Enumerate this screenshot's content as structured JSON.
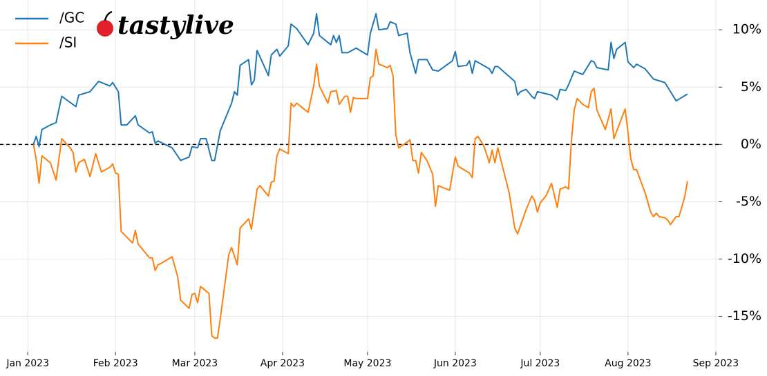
{
  "chart_data": {
    "type": "line",
    "logo": "tastylive",
    "xlim": [
      -9.8,
      244
    ],
    "ylim": [
      -18.1,
      12.6
    ],
    "xticks": [
      {
        "value": 0,
        "label": "Jan 2023"
      },
      {
        "value": 31,
        "label": "Feb 2023"
      },
      {
        "value": 59,
        "label": "Mar 2023"
      },
      {
        "value": 90,
        "label": "Apr 2023"
      },
      {
        "value": 120,
        "label": "May 2023"
      },
      {
        "value": 151,
        "label": "Jun 2023"
      },
      {
        "value": 181,
        "label": "Jul 2023"
      },
      {
        "value": 212,
        "label": "Aug 2023"
      },
      {
        "value": 243,
        "label": "Sep 2023"
      }
    ],
    "yticks": [
      {
        "value": -15,
        "label": "-15%"
      },
      {
        "value": -10,
        "label": "-10%"
      },
      {
        "value": -5,
        "label": "-5%"
      },
      {
        "value": 0,
        "label": "0%"
      },
      {
        "value": 5,
        "label": "5%"
      },
      {
        "value": 10,
        "label": "10%"
      }
    ],
    "grid": true,
    "reference_line": 0,
    "legend": "upper-left",
    "series": [
      {
        "name": "/GC",
        "color": "#1f77b4",
        "x": [
          2,
          3,
          4,
          5,
          8,
          10,
          12,
          17,
          18,
          22,
          25,
          29,
          30,
          32,
          33,
          35,
          38,
          39,
          43,
          44,
          45,
          46,
          51,
          54,
          57,
          58,
          60,
          61,
          63,
          65,
          66,
          68,
          72,
          73,
          74,
          75,
          78,
          79,
          80,
          81,
          85,
          86,
          88,
          89,
          92,
          93,
          95,
          99,
          101,
          102,
          103,
          107,
          108,
          109,
          110,
          111,
          113,
          116,
          120,
          121,
          123,
          124,
          127,
          128,
          130,
          131,
          134,
          135,
          137,
          138,
          141,
          143,
          145,
          150,
          151,
          152,
          155,
          156,
          157,
          158,
          163,
          164,
          165,
          166,
          172,
          173,
          174,
          176,
          178,
          179,
          180,
          185,
          187,
          188,
          190,
          191,
          193,
          196,
          199,
          200,
          201,
          205,
          206,
          207,
          208,
          211,
          212,
          214,
          215,
          218,
          221,
          225,
          227,
          229,
          233
        ],
        "values": [
          0.0,
          0.7,
          -0.2,
          1.3,
          1.7,
          1.9,
          4.2,
          3.3,
          4.3,
          4.6,
          5.5,
          5.1,
          5.4,
          4.6,
          1.7,
          1.7,
          2.5,
          1.7,
          1.0,
          1.1,
          0.1,
          0.3,
          -0.3,
          -1.4,
          -1.1,
          -0.2,
          -0.3,
          0.5,
          0.5,
          -1.4,
          -1.4,
          1.2,
          3.6,
          4.6,
          4.3,
          6.9,
          7.4,
          5.2,
          5.6,
          8.2,
          6.0,
          7.8,
          8.3,
          7.7,
          8.6,
          10.5,
          10.1,
          8.7,
          9.7,
          11.4,
          9.5,
          8.7,
          9.5,
          8.9,
          9.5,
          8.0,
          8.0,
          8.4,
          7.8,
          9.7,
          11.4,
          10.0,
          10.1,
          10.7,
          10.5,
          9.5,
          9.7,
          8.0,
          6.2,
          7.4,
          7.4,
          6.5,
          6.4,
          7.3,
          8.1,
          6.8,
          6.9,
          7.3,
          6.2,
          7.3,
          6.6,
          6.2,
          6.8,
          6.8,
          5.5,
          4.3,
          4.6,
          4.8,
          4.2,
          4.0,
          4.6,
          4.3,
          3.9,
          4.8,
          4.7,
          5.2,
          6.4,
          6.1,
          7.3,
          7.2,
          6.7,
          6.5,
          8.9,
          7.5,
          8.3,
          8.9,
          7.2,
          6.7,
          7.0,
          6.6,
          5.7,
          5.4,
          4.6,
          3.8,
          4.4
        ]
      },
      {
        "name": "/SI",
        "color": "#ff7f0e",
        "x": [
          2,
          3,
          4,
          5,
          8,
          10,
          12,
          15,
          16,
          17,
          18,
          20,
          22,
          24,
          26,
          29,
          30,
          31,
          32,
          33,
          37,
          38,
          39,
          43,
          44,
          45,
          46,
          47,
          51,
          53,
          54,
          57,
          58,
          59,
          60,
          61,
          63,
          64,
          65,
          66,
          67,
          68,
          71,
          72,
          74,
          75,
          78,
          79,
          81,
          82,
          85,
          86,
          87,
          88,
          89,
          92,
          93,
          94,
          95,
          99,
          101,
          102,
          103,
          106,
          107,
          109,
          110,
          112,
          113,
          114,
          115,
          116,
          120,
          121,
          122,
          123,
          124,
          127,
          128,
          129,
          130,
          131,
          134,
          135,
          136,
          137,
          138,
          139,
          141,
          143,
          144,
          145,
          149,
          151,
          152,
          154,
          156,
          157,
          158,
          159,
          161,
          162,
          163,
          164,
          165,
          166,
          170,
          172,
          173,
          176,
          178,
          179,
          180,
          181,
          183,
          185,
          187,
          188,
          190,
          191,
          192,
          193,
          194,
          196,
          198,
          199,
          200,
          201,
          204,
          206,
          207,
          211,
          212,
          213,
          214,
          215,
          218,
          220,
          221,
          222,
          223,
          225,
          226,
          227,
          229,
          230,
          232,
          233
        ],
        "values": [
          0,
          -1.3,
          -3.4,
          -1.0,
          -1.6,
          -3.1,
          0.5,
          -0.3,
          -0.7,
          -2.4,
          -1.6,
          -1.3,
          -2.8,
          -0.8,
          -2.4,
          -2.0,
          -1.7,
          -2.5,
          -2.6,
          -7.6,
          -8.6,
          -7.5,
          -8.7,
          -9.9,
          -9.9,
          -11.0,
          -10.5,
          -10.4,
          -9.8,
          -11.6,
          -13.6,
          -14.3,
          -13.1,
          -13.0,
          -13.8,
          -12.4,
          -12.8,
          -13.0,
          -16.7,
          -16.9,
          -16.9,
          -15.2,
          -9.6,
          -9.0,
          -10.5,
          -7.3,
          -6.5,
          -7.4,
          -3.9,
          -3.6,
          -4.5,
          -3.3,
          -3.2,
          -1.0,
          -0.4,
          -0.8,
          3.6,
          3.3,
          3.6,
          2.8,
          5.1,
          7.0,
          5.1,
          3.6,
          4.6,
          4.7,
          3.5,
          4.2,
          4.2,
          2.8,
          4.1,
          4.0,
          4.0,
          5.8,
          6.0,
          8.3,
          7.0,
          6.7,
          6.9,
          6.0,
          0.8,
          -0.3,
          0.2,
          0.4,
          -1.4,
          -1.4,
          -2.5,
          -0.7,
          -1.4,
          -2.6,
          -5.4,
          -3.6,
          -4.0,
          -1.1,
          -1.9,
          -2.2,
          -2.5,
          -2.9,
          0.5,
          0.7,
          -0.1,
          -0.8,
          -1.6,
          -0.5,
          -1.6,
          -0.3,
          -4.2,
          -7.3,
          -7.8,
          -5.7,
          -4.5,
          -4.9,
          -5.9,
          -5.1,
          -4.5,
          -3.4,
          -5.5,
          -3.9,
          -3.7,
          -3.9,
          0.3,
          3.0,
          4.0,
          3.5,
          3.2,
          4.6,
          4.9,
          3.0,
          1.3,
          3.1,
          0.5,
          3.1,
          1.0,
          -1.3,
          -2.2,
          -2.2,
          -4.2,
          -5.9,
          -6.3,
          -6.0,
          -6.3,
          -6.4,
          -6.6,
          -7.0,
          -6.3,
          -6.3,
          -4.6,
          -3.2
        ]
      }
    ]
  }
}
